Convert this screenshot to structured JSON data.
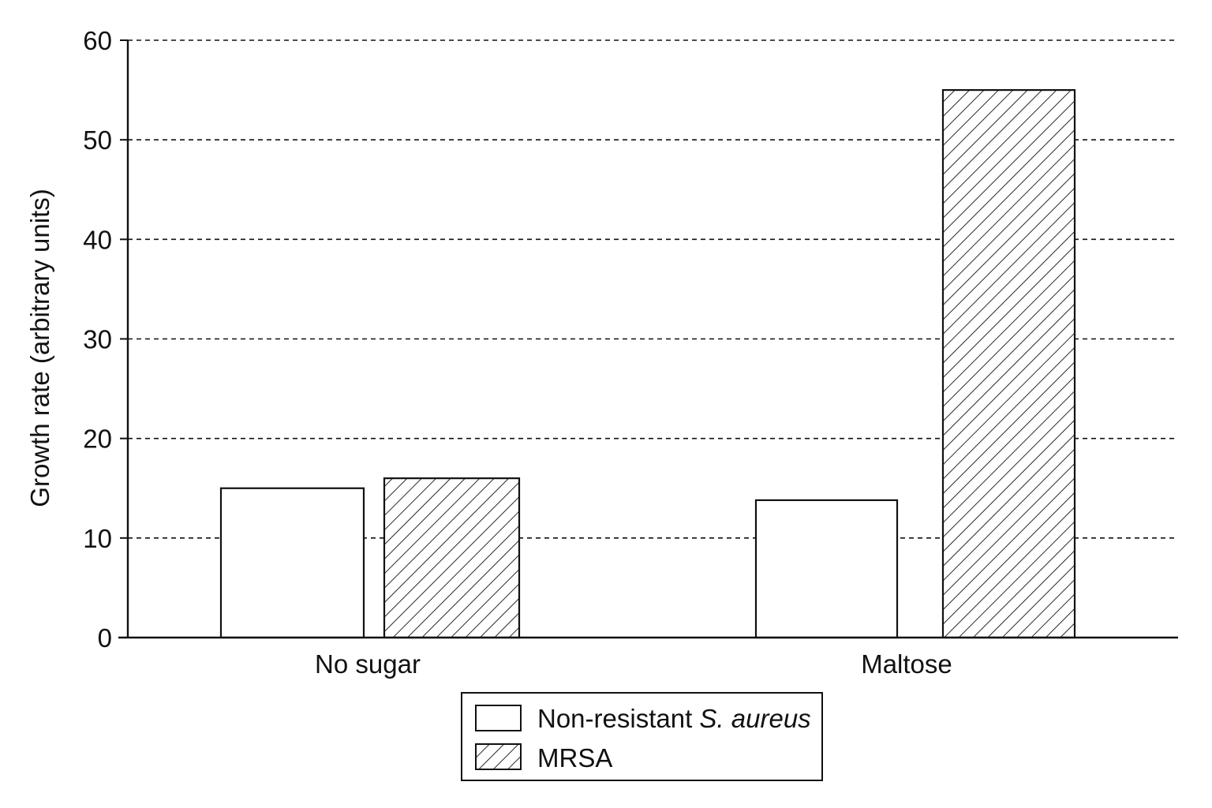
{
  "chart_data": {
    "type": "bar",
    "title": "",
    "xlabel": "",
    "ylabel": "Growth rate (arbitrary units)",
    "ylim": [
      0,
      60
    ],
    "yticks": [
      0,
      10,
      20,
      30,
      40,
      50,
      60
    ],
    "grid": "horizontal dashed",
    "categories": [
      "No sugar",
      "Maltose"
    ],
    "series": [
      {
        "name": "Non-resistant S. aureus",
        "name_prefix": "Non-resistant ",
        "name_italic": "S. aureus",
        "fill": "none",
        "values": [
          15,
          13.8
        ]
      },
      {
        "name": "MRSA",
        "fill": "diagonal-hatch",
        "values": [
          16,
          55
        ]
      }
    ],
    "legend": {
      "placement": "bottom-center"
    },
    "colors": {
      "stroke": "#111111",
      "background": "#ffffff",
      "grid": "#111111"
    }
  }
}
